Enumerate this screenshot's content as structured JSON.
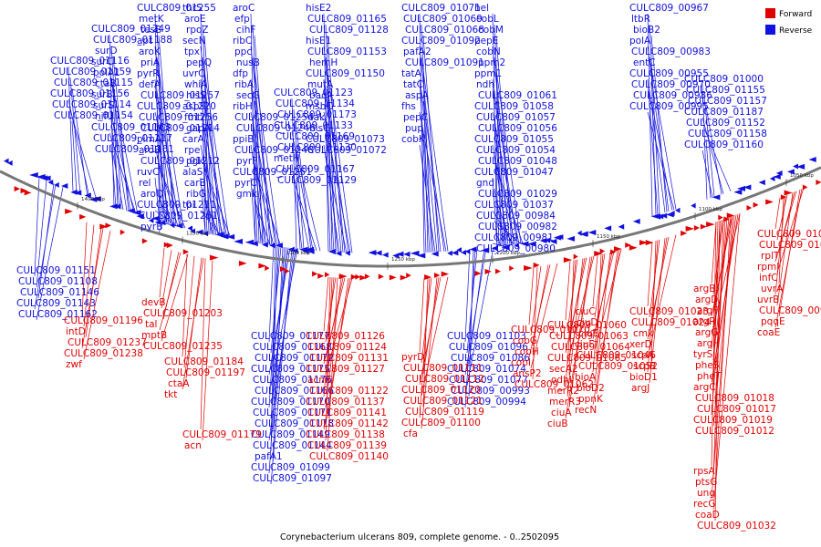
{
  "title": "Corynebacterium ulcerans 809, complete genome. - 0..2502095",
  "legend": [
    {
      "label": "Forward",
      "color": "#e00000"
    },
    {
      "label": "Reverse",
      "color": "#1010e0"
    }
  ],
  "colors": {
    "forward": "#e00000",
    "reverse": "#1010e0",
    "backbone": "#777777"
  },
  "ticks": [
    "1400 kbp",
    "1350 kbp",
    "1300 kbp",
    "1250 kbp",
    "1200 kbp",
    "1150 kbp",
    "1100 kbp",
    "1050 kbp"
  ],
  "reverse_genes": [
    "CULC809_01255",
    "metK",
    "tesB",
    "apt",
    "aroK",
    "priA",
    "pyrR",
    "defA",
    "CULC809_01257",
    "CULC809_01220",
    "CULC809_01256",
    "CULC809_01214",
    "pimA",
    "aroB",
    "CULC809_01212",
    "ruvC",
    "rel",
    "aroQ",
    "CULC809_01211",
    "CULC809_01261",
    "pyrB",
    "thrS",
    "aroE",
    "rpoZ",
    "secN",
    "tpx",
    "pepQ",
    "uvrC",
    "whiA",
    "hisS",
    "aspS",
    "fmt",
    "gapA",
    "carA",
    "rpe",
    "pgk",
    "alaS",
    "carB",
    "ribG",
    "tpi",
    "aroC",
    "efp",
    "cihF",
    "ribC",
    "ppc",
    "nusB",
    "dfp",
    "ribA",
    "secG",
    "ribH",
    "CULC809_01254",
    "CULC809_01246",
    "ppiB",
    "CULC809_01248",
    "pyrF",
    "CULC809_01251",
    "pyrC",
    "gmk",
    "CULC809_01249",
    "CULC809_01188",
    "surD",
    "surC",
    "polA1",
    "ctaB",
    "surB",
    "surS",
    "nifU",
    "CULC809_01163",
    "CULC809_01117",
    "CULC809_01161",
    "CULC809_01116",
    "CULC809_01159",
    "CULC809_01115",
    "CULC809_01156",
    "CULC809_01114",
    "CULC809_01154",
    "CULC809_01151",
    "CULC809_01108",
    "CULC809_01146",
    "CULC809_01143",
    "CULC809_01162",
    "CULC809_01123",
    "CULC809_01134",
    "CULC809_01173",
    "CULC809_01133",
    "CULC809_01169",
    "CULC809_01130",
    "metH",
    "CULC809_01167",
    "CULC809_01129",
    "hisE2",
    "CULC809_01165",
    "CULC809_01128",
    "hisE1",
    "CULC809_01153",
    "hemH",
    "CULC809_01150",
    "mutA",
    "bacA",
    "mshC",
    "dak",
    "hisG",
    "CULC809_01073",
    "CULC809_01072",
    "CULC809_01071",
    "CULC809_01069",
    "CULC809_01068",
    "CULC809_01092",
    "pafA2",
    "CULC809_01091",
    "tatA",
    "tatC",
    "aspA",
    "fhs",
    "pepC",
    "pup",
    "cobK",
    "hel",
    "cobL",
    "cobM",
    "pepE",
    "cobN",
    "ppm2",
    "ppm1",
    "ndh",
    "CULC809_01061",
    "CULC809_01058",
    "CULC809_01057",
    "CULC809_01056",
    "CULC809_01055",
    "CULC809_01054",
    "CULC809_01048",
    "CULC809_01047",
    "gnd",
    "CULC809_01029",
    "CULC809_01037",
    "CULC809_00984",
    "CULC809_00982",
    "CULC809_00981",
    "CULC809_00980",
    "CULC809_00967",
    "ltbR",
    "bioB2",
    "polA",
    "CULC809_00983",
    "entC",
    "CULC809_00955",
    "CULC809_00970",
    "CULC809_00986",
    "CULC809_00995",
    "CULC809_01000",
    "CULC809_01155",
    "CULC809_01157",
    "CULC809_01187",
    "CULC809_01152",
    "CULC809_01158",
    "CULC809_01160",
    "CULC809_01177",
    "CULC809_01168",
    "CULC809_01172",
    "CULC809_01175",
    "CULC809_01176",
    "CULC809_01166",
    "CULC809_01170",
    "CULC809_01171",
    "CULC809_01178",
    "CULC809_01149",
    "CULC809_01144",
    "pafA1",
    "CULC809_01099",
    "CULC809_01097",
    "CULC809_01103",
    "CULC809_01096",
    "CULC809_01086",
    "CULC809_01074",
    "CULC809_01077",
    "CULC809_00993",
    "CULC809_00994"
  ],
  "forward_genes": [
    "devB",
    "CULC809_01203",
    "tal",
    "mptB",
    "CULC809_01235",
    "CULC809_01196",
    "intD",
    "CULC809_01237",
    "CULC809_01238",
    "zwf",
    "CULC809_01184",
    "CULC809_01197",
    "ctaA",
    "tkt",
    "CULC809_01179",
    "acn",
    "CULC809_01126",
    "CULC809_01124",
    "CULC809_01131",
    "CULC809_01127",
    "acnR",
    "CULC809_01122",
    "CULC809_01137",
    "CULC809_01141",
    "CULC809_01142",
    "CULC809_01138",
    "CULC809_01139",
    "CULC809_01140",
    "pyrD",
    "CULC809_01111",
    "CULC809_01112",
    "CULC809_01120",
    "CULC809_01121",
    "CULC809_01119",
    "CULC809_01100",
    "cfa",
    "CULC809_01070",
    "cobG",
    "cobH",
    "cobI",
    "ansP2",
    "CULC809_01062",
    "CULC809_01060",
    "CULC809_01063",
    "CULC809_01064",
    "CULC809_01065",
    "secA2",
    "odhI",
    "merR2",
    "merR3",
    "ciuA",
    "ciuB",
    "ciuC",
    "ciuD",
    "ciuE",
    "ciuF",
    "CULC809_01046",
    "CULC809_01052",
    "bioA",
    "bioD2",
    "ppnK",
    "recN",
    "CULC809_01023",
    "CULC809_01024",
    "cmk",
    "xerD",
    "scpA",
    "scpB",
    "bioD1",
    "argJ",
    "argB",
    "argD",
    "argF",
    "argR",
    "argG",
    "argH",
    "tyrS",
    "pheS",
    "pheT",
    "argC",
    "CULC809_01018",
    "CULC809_01017",
    "CULC809_01019",
    "CULC809_01012",
    "CULC809_01022",
    "CULC809_01001",
    "rplT",
    "rpmI",
    "infC",
    "uvrA",
    "uvrB",
    "CULC809_00992",
    "pqqE",
    "coaE",
    "rpsA",
    "ptsG",
    "ung",
    "recG",
    "coaD",
    "CULC809_01032",
    "CULC809_01033",
    "CULC809_01035",
    "CULC809_01036",
    "CULC809_01038",
    "CULC809_01039"
  ]
}
